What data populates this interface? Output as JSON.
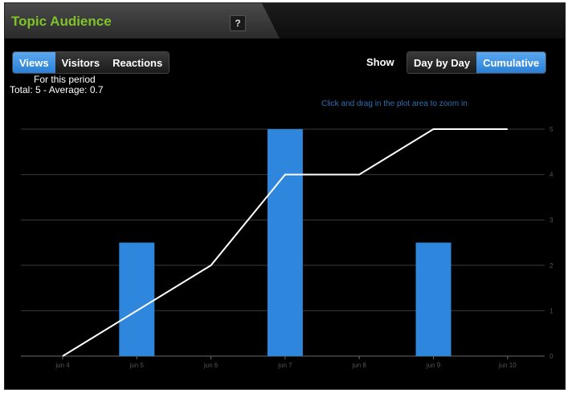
{
  "panel": {
    "title": "Topic Audience",
    "help_label": "?"
  },
  "metric_tabs": [
    {
      "label": "Views",
      "active": true
    },
    {
      "label": "Visitors",
      "active": false
    },
    {
      "label": "Reactions",
      "active": false
    }
  ],
  "show": {
    "label": "Show",
    "options": [
      {
        "label": "Day by Day",
        "active": false
      },
      {
        "label": "Cumulative",
        "active": true
      }
    ]
  },
  "summary": {
    "line1": "For this period",
    "line2": "Total: 5 - Average: 0.7"
  },
  "hint": "Click and drag in the plot area to zoom in",
  "colors": {
    "accent": "#2f86dd",
    "title": "#7fc32b",
    "background": "#000000",
    "line": "#ffffff"
  },
  "chart_data": {
    "type": "bar",
    "categories": [
      "jun 4",
      "jun 5",
      "jun 6",
      "jun 7",
      "jun 8",
      "jun 9",
      "jun 10"
    ],
    "series": [
      {
        "kind": "bar",
        "values": [
          0,
          2.5,
          0,
          5,
          0,
          2.5,
          0
        ]
      },
      {
        "kind": "line",
        "values": [
          0,
          1,
          2,
          4,
          4,
          5,
          5
        ]
      }
    ],
    "yticks": [
      0,
      1,
      2,
      3,
      4,
      5
    ],
    "ylim": [
      0,
      5
    ],
    "grid": true,
    "y_axis_side": "right"
  }
}
